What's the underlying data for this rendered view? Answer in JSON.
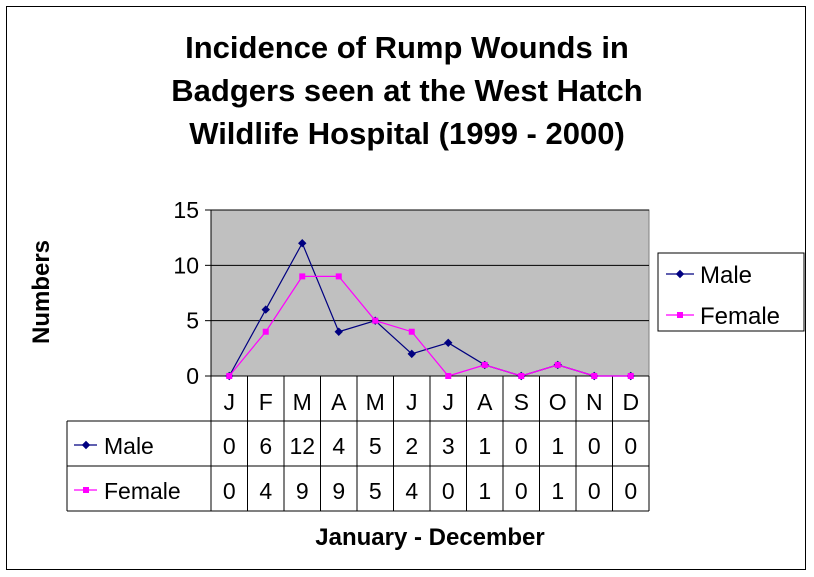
{
  "chart_data": {
    "type": "line",
    "title_lines": [
      "Incidence of Rump Wounds in",
      "Badgers seen at the West Hatch",
      "Wildlife Hospital (1999 - 2000)"
    ],
    "xlabel": "January - December",
    "ylabel": "Numbers",
    "categories": [
      "J",
      "F",
      "M",
      "A",
      "M",
      "J",
      "J",
      "A",
      "S",
      "O",
      "N",
      "D"
    ],
    "ylim": [
      0,
      15
    ],
    "yticks": [
      0,
      5,
      10,
      15
    ],
    "grid": true,
    "legend_position": "right",
    "series": [
      {
        "name": "Male",
        "values": [
          0,
          6,
          12,
          4,
          5,
          2,
          3,
          1,
          0,
          1,
          0,
          0
        ],
        "color": "#000080",
        "marker": "diamond"
      },
      {
        "name": "Female",
        "values": [
          0,
          4,
          9,
          9,
          5,
          4,
          0,
          1,
          0,
          1,
          0,
          0
        ],
        "color": "#FF00FF",
        "marker": "square"
      }
    ]
  },
  "colors": {
    "plot_background": "#C0C0C0",
    "chart_background": "#FFFFFF"
  }
}
